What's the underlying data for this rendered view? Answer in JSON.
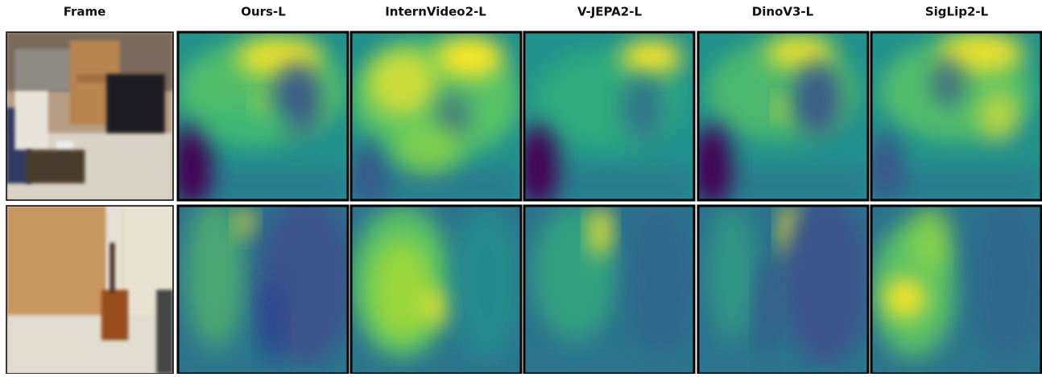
{
  "columns": [
    "Frame",
    "Ours-L",
    "InternVideo2-L",
    "V-JEPA2-L",
    "DinoV3-L",
    "SigLip2-L"
  ]
}
